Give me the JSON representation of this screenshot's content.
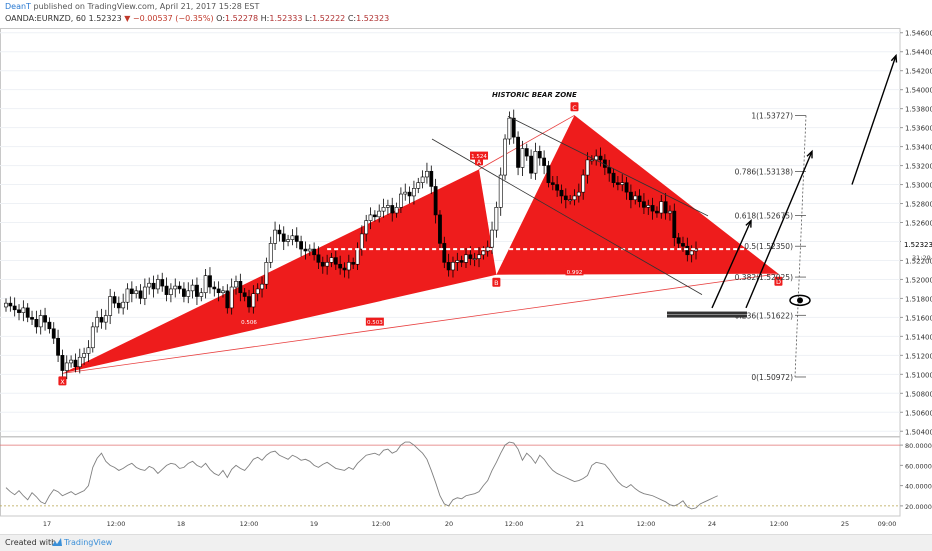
{
  "header": {
    "author": "DeanT",
    "published": "published on TradingView.com, April 21, 2017 15:28 EST",
    "symbol": "OANDA:EURNZD, 60",
    "last": "1.52323",
    "change": "−0.00537 (−0.35%)",
    "open_label": "O:",
    "open": "1.52278",
    "high_label": "H:",
    "high": "1.52333",
    "low_label": "L:",
    "low": "1.52222",
    "close_label": "C:",
    "close": "1.52323"
  },
  "footer": {
    "created_with": "Created with",
    "brand": "TradingView"
  },
  "colors": {
    "pattern": "#ee1c1c",
    "trend": "#e84040",
    "dashed": "#ffffff",
    "grid": "#eef1f5",
    "up": "#ffffff",
    "down": "#000000",
    "osc": "#808080",
    "band": "#e07070"
  },
  "annotations": {
    "zone_label": "HISTORIC BEAR ZONE",
    "points": [
      "X",
      "A",
      "B",
      "C",
      "D"
    ],
    "ratios": [
      {
        "label": "0.506",
        "price": 1.5155,
        "bar": 56
      },
      {
        "label": "1.524",
        "price": 1.533,
        "bar": 109
      },
      {
        "label": "0.992",
        "price": 1.5208,
        "bar": 131
      },
      {
        "label": "0.503",
        "price": 1.5155,
        "bar": 85
      }
    ],
    "fib_levels": [
      {
        "label": "1(1.53727)",
        "price": 1.53727
      },
      {
        "label": "0.786(1.53138)",
        "price": 1.53138
      },
      {
        "label": "0.618(1.52675)",
        "price": 1.52675
      },
      {
        "label": "0.5(1.52350)",
        "price": 1.5235
      },
      {
        "label": "0.382(1.52025)",
        "price": 1.52025
      },
      {
        "label": "0.236(1.51622)",
        "price": 1.51622
      },
      {
        "label": "0(1.50972)",
        "price": 1.50972
      }
    ],
    "price_tag": "1.52323",
    "time_tag": "31:29"
  },
  "chart_data": {
    "type": "candlestick",
    "title": "",
    "ylim": [
      1.5035,
      1.5465
    ],
    "y_ticks": [
      "1.54600",
      "1.54400",
      "1.54200",
      "1.54000",
      "1.53800",
      "1.53600",
      "1.53400",
      "1.53200",
      "1.53000",
      "1.52800",
      "1.52600",
      "1.52400",
      "1.52200",
      "1.52000",
      "1.51800",
      "1.51600",
      "1.51400",
      "1.51200",
      "1.51000",
      "1.50800",
      "1.50600",
      "1.50400"
    ],
    "x_ticks": [
      "17",
      "12:00",
      "18",
      "12:00",
      "19",
      "12:00",
      "20",
      "12:00",
      "21",
      "12:00",
      "24",
      "12:00",
      "25",
      "09:00"
    ],
    "close": [
      1.5175,
      1.5172,
      1.5168,
      1.5165,
      1.517,
      1.516,
      1.5158,
      1.515,
      1.5162,
      1.5155,
      1.5148,
      1.5138,
      1.512,
      1.5104,
      1.5112,
      1.5115,
      1.5108,
      1.5118,
      1.5122,
      1.5128,
      1.515,
      1.516,
      1.5155,
      1.5162,
      1.5182,
      1.5175,
      1.517,
      1.5176,
      1.519,
      1.5185,
      1.5188,
      1.518,
      1.5192,
      1.5196,
      1.519,
      1.52,
      1.5193,
      1.5184,
      1.519,
      1.5193,
      1.519,
      1.5182,
      1.5188,
      1.5194,
      1.5182,
      1.5186,
      1.5204,
      1.5192,
      1.519,
      1.5186,
      1.5188,
      1.517,
      1.5192,
      1.5198,
      1.5186,
      1.5182,
      1.5171,
      1.5185,
      1.519,
      1.5195,
      1.5218,
      1.5238,
      1.5252,
      1.5248,
      1.524,
      1.5242,
      1.5246,
      1.524,
      1.5232,
      1.523,
      1.5232,
      1.5226,
      1.5218,
      1.5214,
      1.5218,
      1.5223,
      1.5216,
      1.5212,
      1.521,
      1.5218,
      1.5216,
      1.5232,
      1.5248,
      1.5262,
      1.5268,
      1.5266,
      1.5272,
      1.5276,
      1.5278,
      1.527,
      1.5276,
      1.529,
      1.5292,
      1.5288,
      1.5296,
      1.5302,
      1.5308,
      1.5314,
      1.5298,
      1.5268,
      1.5238,
      1.5218,
      1.521,
      1.5218,
      1.522,
      1.5218,
      1.5226,
      1.5222,
      1.5222,
      1.5226,
      1.523,
      1.5234,
      1.5252,
      1.5276,
      1.531,
      1.5348,
      1.537,
      1.535,
      1.5318,
      1.5338,
      1.533,
      1.5312,
      1.5335,
      1.5328,
      1.532,
      1.5302,
      1.53,
      1.5294,
      1.5288,
      1.5284,
      1.5284,
      1.5288,
      1.5292,
      1.531,
      1.5326,
      1.5326,
      1.533,
      1.5326,
      1.5318,
      1.5312,
      1.5302,
      1.53,
      1.5302,
      1.5292,
      1.5284,
      1.5288,
      1.5282,
      1.5276,
      1.5278,
      1.5272,
      1.527,
      1.5282,
      1.527,
      1.5272,
      1.5244,
      1.5238,
      1.5235,
      1.5226,
      1.523,
      1.5232
    ]
  },
  "oscillator": {
    "ticks": [
      "80.0000",
      "60.0000",
      "40.0000",
      "20.0000"
    ],
    "ylim": [
      10,
      88
    ],
    "bands": [
      80,
      20
    ],
    "values": [
      38,
      34,
      31,
      35,
      30,
      26,
      33,
      29,
      24,
      22,
      30,
      36,
      34,
      30,
      32,
      34,
      31,
      33,
      35,
      40,
      58,
      67,
      72,
      64,
      60,
      58,
      55,
      57,
      60,
      62,
      58,
      56,
      55,
      59,
      57,
      52,
      56,
      60,
      62,
      61,
      57,
      58,
      62,
      64,
      60,
      58,
      62,
      56,
      52,
      50,
      55,
      48,
      56,
      60,
      57,
      55,
      60,
      66,
      68,
      65,
      70,
      73,
      74,
      70,
      68,
      66,
      70,
      68,
      65,
      66,
      64,
      60,
      58,
      61,
      63,
      60,
      57,
      56,
      55,
      58,
      56,
      62,
      66,
      70,
      71,
      72,
      70,
      75,
      76,
      72,
      74,
      80,
      83,
      83,
      80,
      76,
      72,
      66,
      55,
      43,
      30,
      22,
      20,
      26,
      28,
      27,
      30,
      31,
      32,
      34,
      40,
      45,
      55,
      63,
      72,
      80,
      83,
      82,
      76,
      65,
      72,
      68,
      62,
      70,
      66,
      60,
      55,
      52,
      50,
      48,
      46,
      44,
      45,
      47,
      50,
      60,
      63,
      62,
      61,
      56,
      50,
      44,
      40,
      38,
      41,
      37,
      34,
      32,
      31,
      30,
      28,
      26,
      24,
      21,
      20,
      22,
      25,
      19,
      17,
      18,
      22,
      24,
      26,
      28,
      30
    ]
  }
}
